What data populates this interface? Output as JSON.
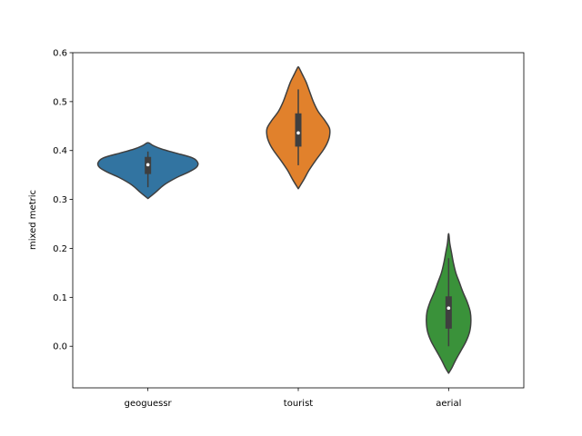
{
  "chart_data": {
    "type": "violin",
    "title": "",
    "xlabel": "",
    "ylabel": "mixed metric",
    "ylim": [
      -0.085,
      0.6
    ],
    "yticks": [
      "0.0",
      "0.1",
      "0.2",
      "0.3",
      "0.4",
      "0.5",
      "0.6"
    ],
    "grid": false,
    "categories": [
      "geoguessr",
      "tourist",
      "aerial"
    ],
    "series": [
      {
        "category": "geoguessr",
        "color": "#3274a1",
        "density": [
          [
            0.302,
            0.0
          ],
          [
            0.315,
            0.13
          ],
          [
            0.33,
            0.27
          ],
          [
            0.345,
            0.48
          ],
          [
            0.355,
            0.66
          ],
          [
            0.365,
            0.8
          ],
          [
            0.375,
            0.83
          ],
          [
            0.385,
            0.74
          ],
          [
            0.395,
            0.46
          ],
          [
            0.403,
            0.23
          ],
          [
            0.41,
            0.09
          ],
          [
            0.416,
            0.0
          ]
        ],
        "whisker": [
          0.325,
          0.398
        ],
        "box": [
          0.352,
          0.387
        ],
        "median": 0.371
      },
      {
        "category": "tourist",
        "color": "#e1812c",
        "density": [
          [
            0.322,
            0.0
          ],
          [
            0.34,
            0.09
          ],
          [
            0.36,
            0.18
          ],
          [
            0.38,
            0.29
          ],
          [
            0.4,
            0.41
          ],
          [
            0.415,
            0.48
          ],
          [
            0.43,
            0.52
          ],
          [
            0.445,
            0.52
          ],
          [
            0.46,
            0.45
          ],
          [
            0.48,
            0.33
          ],
          [
            0.5,
            0.25
          ],
          [
            0.52,
            0.19
          ],
          [
            0.54,
            0.13
          ],
          [
            0.555,
            0.07
          ],
          [
            0.565,
            0.03
          ],
          [
            0.571,
            0.0
          ]
        ],
        "whisker": [
          0.37,
          0.525
        ],
        "box": [
          0.408,
          0.476
        ],
        "median": 0.436
      },
      {
        "category": "aerial",
        "color": "#3a923a",
        "density": [
          [
            -0.055,
            0.0
          ],
          [
            -0.045,
            0.05
          ],
          [
            -0.03,
            0.11
          ],
          [
            -0.01,
            0.2
          ],
          [
            0.01,
            0.29
          ],
          [
            0.03,
            0.35
          ],
          [
            0.05,
            0.37
          ],
          [
            0.07,
            0.36
          ],
          [
            0.09,
            0.31
          ],
          [
            0.11,
            0.24
          ],
          [
            0.13,
            0.18
          ],
          [
            0.15,
            0.12
          ],
          [
            0.17,
            0.08
          ],
          [
            0.19,
            0.05
          ],
          [
            0.21,
            0.02
          ],
          [
            0.23,
            0.0
          ]
        ],
        "whisker": [
          0.0,
          0.18
        ],
        "box": [
          0.036,
          0.102
        ],
        "median": 0.078
      }
    ]
  }
}
